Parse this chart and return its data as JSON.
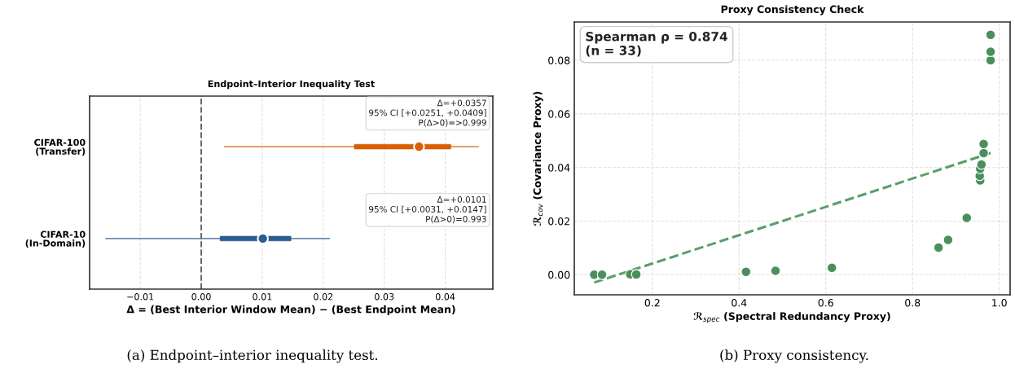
{
  "chart_data": [
    {
      "type": "box",
      "orientation": "horizontal",
      "title": "Endpoint–Interior Inequality Test",
      "xlabel": "Δ = (Best Interior Window Mean) − (Best Endpoint Mean)",
      "categories": [
        "CIFAR-100\n(Transfer)",
        "CIFAR-10\n(In-Domain)"
      ],
      "colors": [
        "#d95f02",
        "#2c5d8f"
      ],
      "boxes": [
        {
          "low": 0.0037,
          "q1": 0.0251,
          "median": 0.0357,
          "q3": 0.0409,
          "high": 0.0455
        },
        {
          "low": -0.0157,
          "q1": 0.0031,
          "median": 0.0101,
          "q3": 0.0147,
          "high": 0.0211
        }
      ],
      "xlim": [
        -0.0183,
        0.0478
      ],
      "xticks": [
        {
          "value": -0.01,
          "label": "−0.01"
        },
        {
          "value": 0,
          "label": "0.00"
        },
        {
          "value": 0.01,
          "label": "0.01"
        },
        {
          "value": 0.02,
          "label": "0.02"
        },
        {
          "value": 0.03,
          "label": "0.03"
        },
        {
          "value": 0.04,
          "label": "0.04"
        }
      ],
      "ref_lines": [
        {
          "axis": "x",
          "value": 0,
          "color": "#666666",
          "line_style": "dashed"
        }
      ],
      "grid": "x",
      "annotations": [
        "Δ=+0.0357\n95% CI [+0.0251, +0.0409]\nP(Δ>0)=>0.999",
        "Δ=+0.0101\n95% CI [+0.0031, +0.0147]\nP(Δ>0)=0.993",
        "(a) Endpoint–interior inequality test."
      ]
    },
    {
      "type": "scatter",
      "title": "Proxy Consistency Check",
      "xlabel": "ℛ$_{spec}$ (Spectral Redundancy Proxy)",
      "ylabel": "ℛ$_{cov}$ (Covariance Proxy)",
      "series": [
        {
          "type": "scatter",
          "color": "#4a8f5c",
          "marker": "circle",
          "x": [
            0.066,
            0.084,
            0.149,
            0.163,
            0.416,
            0.484,
            0.614,
            0.86,
            0.882,
            0.925,
            0.956,
            0.955,
            0.956,
            0.959,
            0.964,
            0.964,
            0.98,
            0.98,
            0.98
          ],
          "values": [
            0,
            0,
            0.0002,
            0.0001,
            0.0011,
            0.0015,
            0.0026,
            0.0101,
            0.013,
            0.0212,
            0.0352,
            0.0369,
            0.0395,
            0.0411,
            0.0454,
            0.0488,
            0.08,
            0.0832,
            0.0895
          ]
        },
        {
          "type": "line",
          "color": "#5a9e6a",
          "line_style": "dashed",
          "marker": "none",
          "x": [
            0.066,
            0.98
          ],
          "values": [
            -0.0029,
            0.0454
          ]
        }
      ],
      "xlim": [
        0.02,
        1.025
      ],
      "ylim": [
        -0.0075,
        0.0943
      ],
      "xticks": [
        {
          "value": 0.2,
          "label": "0.2"
        },
        {
          "value": 0.4,
          "label": "0.4"
        },
        {
          "value": 0.6,
          "label": "0.6"
        },
        {
          "value": 0.8,
          "label": "0.8"
        },
        {
          "value": 1.0,
          "label": "1.0"
        }
      ],
      "yticks": [
        {
          "value": 0,
          "label": "0.00"
        },
        {
          "value": 0.02,
          "label": "0.02"
        },
        {
          "value": 0.04,
          "label": "0.04"
        },
        {
          "value": 0.06,
          "label": "0.06"
        },
        {
          "value": 0.08,
          "label": "0.08"
        }
      ],
      "grid": true,
      "annotations": [
        "Spearman ρ = 0.874\n(n = 33)",
        "(b) Proxy consistency."
      ]
    }
  ]
}
